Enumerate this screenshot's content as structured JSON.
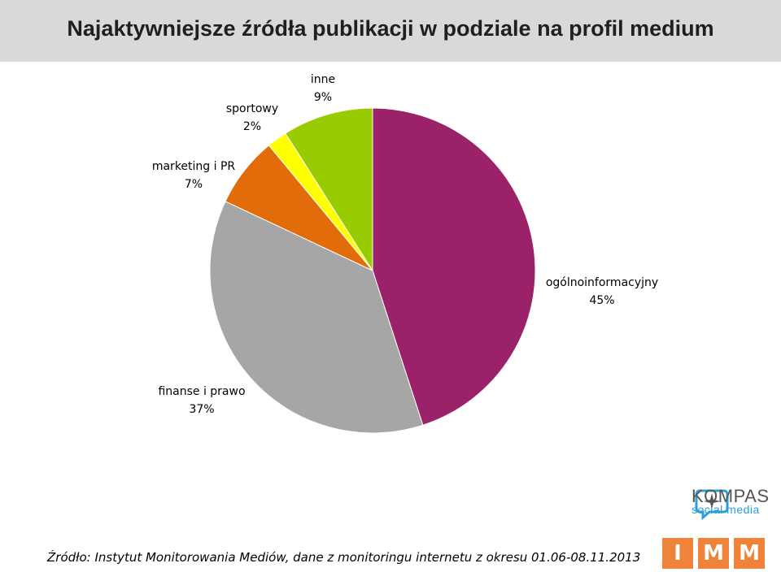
{
  "title": "Najaktywniejsze źródła publikacji w podziale na profil medium",
  "source_note": "Źródło: Instytut Monitorowania Mediów, dane z monitoringu internetu z okresu 01.06-08.11.2013",
  "logos": {
    "kompas_name": "KOMPAS",
    "kompas_sub": "social media",
    "imm_letters": [
      "I",
      "M",
      "M"
    ]
  },
  "colors": {
    "title_bar": "#d9d9d9",
    "imm_orange": "#f0833a",
    "kompas_blue": "#2a9fd8"
  },
  "chart_data": {
    "type": "pie",
    "title": "Najaktywniejsze źródła publikacji w podziale na profil medium",
    "slices": [
      {
        "label": "ogólnoinformacyjny",
        "value": 45,
        "display": "45%",
        "color": "#9b2268"
      },
      {
        "label": "finanse i prawo",
        "value": 37,
        "display": "37%",
        "color": "#a6a6a6"
      },
      {
        "label": "marketing i PR",
        "value": 7,
        "display": "7%",
        "color": "#e36c0a"
      },
      {
        "label": "sportowy",
        "value": 2,
        "display": "2%",
        "color": "#ffff00"
      },
      {
        "label": "inne",
        "value": 9,
        "display": "9%",
        "color": "#99cc00"
      }
    ],
    "start": "12 o'clock",
    "direction": "clockwise",
    "legend": "none (labels outside slices)"
  }
}
